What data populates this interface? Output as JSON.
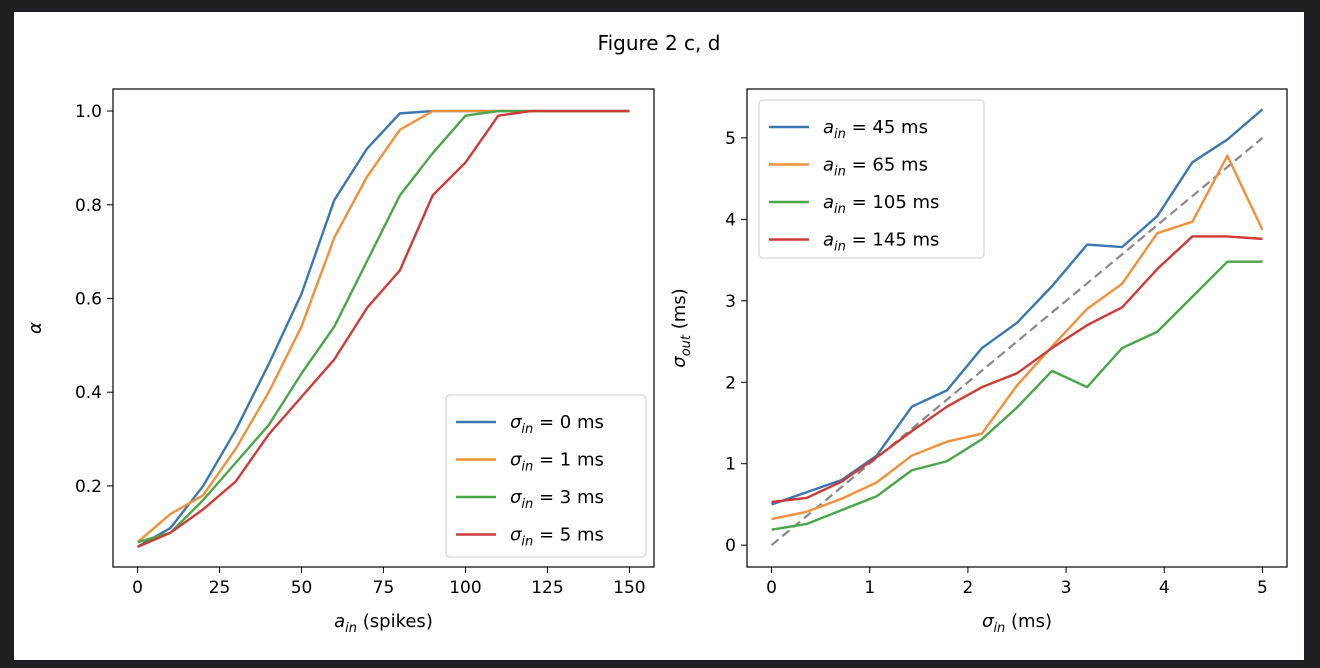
{
  "figure": {
    "title": "Figure 2 c, d"
  },
  "chart_data": [
    {
      "type": "line",
      "panel": "c",
      "xlabel": "a_in (spikes)",
      "ylabel": "α",
      "xlim": [
        -7.5,
        157.5
      ],
      "ylim": [
        0.027,
        1.047
      ],
      "xticks": [
        0,
        25,
        50,
        75,
        100,
        125,
        150
      ],
      "yticks": [
        0.2,
        0.4,
        0.6,
        0.8,
        1.0
      ],
      "ytick_labels": [
        "0.2",
        "0.4",
        "0.6",
        "0.8",
        "1.0"
      ],
      "legend_position": "lower-right",
      "x": [
        0,
        10,
        20,
        30,
        40,
        50,
        60,
        70,
        80,
        90,
        100,
        110,
        120,
        130,
        140,
        150
      ],
      "series": [
        {
          "name": "σin = 0 ms",
          "color": "#3a77b2",
          "values": [
            0.07,
            0.11,
            0.2,
            0.32,
            0.46,
            0.61,
            0.81,
            0.92,
            0.995,
            1.0,
            1.0,
            1.0,
            1.0,
            1.0,
            1.0,
            1.0
          ]
        },
        {
          "name": "σin = 1 ms",
          "color": "#f0903a",
          "values": [
            0.08,
            0.14,
            0.18,
            0.28,
            0.4,
            0.54,
            0.73,
            0.86,
            0.96,
            1.0,
            1.0,
            1.0,
            1.0,
            1.0,
            1.0,
            1.0
          ]
        },
        {
          "name": "σin = 3 ms",
          "color": "#4aa548",
          "values": [
            0.08,
            0.1,
            0.17,
            0.25,
            0.33,
            0.44,
            0.54,
            0.68,
            0.82,
            0.91,
            0.99,
            1.0,
            1.0,
            1.0,
            1.0,
            1.0
          ]
        },
        {
          "name": "σin = 5 ms",
          "color": "#cc3b36",
          "values": [
            0.07,
            0.1,
            0.15,
            0.21,
            0.31,
            0.39,
            0.47,
            0.58,
            0.66,
            0.82,
            0.89,
            0.99,
            1.0,
            1.0,
            1.0,
            1.0
          ]
        }
      ]
    },
    {
      "type": "line",
      "panel": "d",
      "xlabel": "σin (ms)",
      "ylabel": "σout (ms)",
      "xlim": [
        -0.25,
        5.25
      ],
      "ylim": [
        -0.268,
        5.6
      ],
      "xticks": [
        0,
        1,
        2,
        3,
        4,
        5
      ],
      "yticks": [
        0,
        1,
        2,
        3,
        4,
        5
      ],
      "legend_position": "upper-left",
      "x": [
        0,
        0.357,
        0.714,
        1.071,
        1.429,
        1.786,
        2.143,
        2.5,
        2.857,
        3.214,
        3.571,
        3.929,
        4.286,
        4.643,
        5.0
      ],
      "series": [
        {
          "name": "ain = 45 ms",
          "color": "#3a77b2",
          "values": [
            0.5,
            0.65,
            0.8,
            1.1,
            1.7,
            1.9,
            2.42,
            2.73,
            3.18,
            3.69,
            3.66,
            4.04,
            4.7,
            4.98,
            5.35
          ]
        },
        {
          "name": "ain = 65 ms",
          "color": "#f0903a",
          "values": [
            0.32,
            0.41,
            0.57,
            0.77,
            1.1,
            1.27,
            1.37,
            1.96,
            2.44,
            2.9,
            3.21,
            3.83,
            3.97,
            4.78,
            3.87
          ]
        },
        {
          "name": "ain = 105 ms",
          "color": "#4aa548",
          "values": [
            0.19,
            0.26,
            0.43,
            0.6,
            0.92,
            1.03,
            1.3,
            1.69,
            2.14,
            1.94,
            2.42,
            2.62,
            3.05,
            3.48,
            3.48
          ]
        },
        {
          "name": "ain = 145 ms",
          "color": "#cc3b36",
          "values": [
            0.53,
            0.58,
            0.78,
            1.08,
            1.4,
            1.7,
            1.94,
            2.11,
            2.42,
            2.7,
            2.92,
            3.39,
            3.79,
            3.79,
            3.76
          ]
        }
      ],
      "reference_line": {
        "name": "",
        "color": "#888888",
        "x": [
          0,
          5
        ],
        "y": [
          0,
          5
        ],
        "style": "dashed"
      }
    }
  ]
}
